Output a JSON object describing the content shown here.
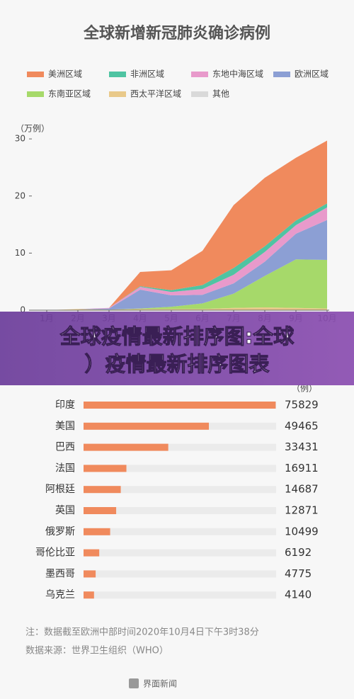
{
  "chart_data": [
    {
      "type": "area",
      "stacked": true,
      "title": "全球新增新冠肺炎确诊病例",
      "y_label": "（万例）",
      "categories": [
        "1月",
        "2月",
        "3月",
        "4月",
        "5月",
        "6月",
        "7月",
        "8月",
        "9月",
        "10月"
      ],
      "series": [
        {
          "name": "美洲区域",
          "color": "#f08a5d",
          "values": [
            0,
            0,
            0,
            2.5,
            3.5,
            6,
            11,
            12,
            11,
            11
          ]
        },
        {
          "name": "非洲区域",
          "color": "#4fc4a2",
          "values": [
            0,
            0,
            0,
            0.1,
            0.3,
            0.7,
            1.2,
            1,
            0.8,
            0.7
          ]
        },
        {
          "name": "东地中海区域",
          "color": "#e89acb",
          "values": [
            0,
            0,
            0.1,
            0.5,
            0.6,
            1,
            1.5,
            1.7,
            1.5,
            2.2
          ]
        },
        {
          "name": "欧洲区域",
          "color": "#8c9fd4",
          "values": [
            0,
            0,
            0.2,
            3.3,
            2,
            1.5,
            1.8,
            2.5,
            4.5,
            7
          ]
        },
        {
          "name": "东南亚区域",
          "color": "#a6d96a",
          "values": [
            0,
            0,
            0,
            0.1,
            0.4,
            1,
            2.5,
            5.5,
            8.5,
            8.5
          ]
        },
        {
          "name": "西太平洋区域",
          "color": "#e9c98a",
          "values": [
            0,
            0.2,
            0.1,
            0.2,
            0.2,
            0.2,
            0.4,
            0.5,
            0.4,
            0.3
          ]
        },
        {
          "name": "其他",
          "color": "#d9d9d9",
          "values": [
            0,
            0,
            0,
            0,
            0,
            0,
            0,
            0,
            0,
            0
          ]
        }
      ],
      "ylim": [
        0,
        32
      ],
      "yticks": [
        0,
        10,
        20,
        30
      ],
      "grid": false
    },
    {
      "type": "bar",
      "orientation": "horizontal",
      "unit_label": "（例）",
      "categories": [
        "印度",
        "美国",
        "巴西",
        "法国",
        "阿根廷",
        "英国",
        "俄罗斯",
        "哥伦比亚",
        "墨西哥",
        "乌克兰"
      ],
      "values": [
        75829,
        49465,
        33431,
        16911,
        14687,
        12871,
        10499,
        6192,
        4775,
        4140
      ],
      "color": "#f08a5d",
      "track_color": "#ebebeb",
      "xlim": [
        0,
        76000
      ]
    }
  ],
  "banner": {
    "lines": [
      "全球疫情最新排序图:全球",
      "）疫情最新排序图表"
    ]
  },
  "notes": [
    "注：数据截至欧洲中部时间2020年10月4日下午3时38分",
    "数据来源：世界卫生组织（WHO）"
  ],
  "footer": "界面新闻"
}
